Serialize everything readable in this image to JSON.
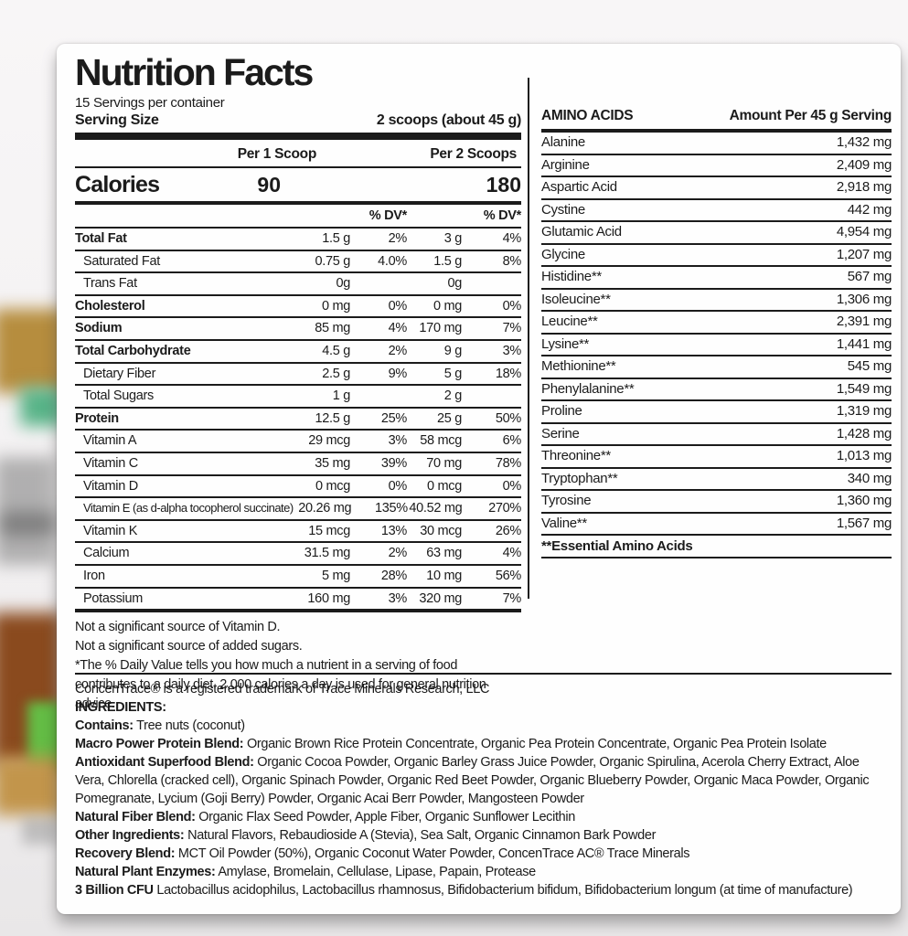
{
  "nutrition": {
    "title": "Nutrition Facts",
    "servings_per_container": "15 Servings per container",
    "serving_size_label": "Serving Size",
    "serving_size_value": "2 scoops (about 45 g)",
    "col1_header": "Per 1 Scoop",
    "col2_header": "Per 2 Scoops",
    "calories_label": "Calories",
    "calories_per_scoop": "90",
    "calories_per_2_scoops": "180",
    "dv_header": "% DV*",
    "rows": [
      {
        "name": "Total Fat",
        "amt1": "1.5 g",
        "dv1": "2%",
        "amt2": "3 g",
        "dv2": "4%",
        "bold": true,
        "indent": false
      },
      {
        "name": "Saturated Fat",
        "amt1": "0.75 g",
        "dv1": "4.0%",
        "amt2": "1.5 g",
        "dv2": "8%",
        "bold": false,
        "indent": true
      },
      {
        "name": "Trans Fat",
        "amt1": "0g",
        "dv1": "",
        "amt2": "0g",
        "dv2": "",
        "bold": false,
        "indent": true
      },
      {
        "name": "Cholesterol",
        "amt1": "0 mg",
        "dv1": "0%",
        "amt2": "0 mg",
        "dv2": "0%",
        "bold": true,
        "indent": false
      },
      {
        "name": "Sodium",
        "amt1": "85 mg",
        "dv1": "4%",
        "amt2": "170 mg",
        "dv2": "7%",
        "bold": true,
        "indent": false
      },
      {
        "name": "Total Carbohydrate",
        "amt1": "4.5 g",
        "dv1": "2%",
        "amt2": "9 g",
        "dv2": "3%",
        "bold": true,
        "indent": false
      },
      {
        "name": "Dietary Fiber",
        "amt1": "2.5 g",
        "dv1": "9%",
        "amt2": "5 g",
        "dv2": "18%",
        "bold": false,
        "indent": true
      },
      {
        "name": "Total Sugars",
        "amt1": "1 g",
        "dv1": "",
        "amt2": "2 g",
        "dv2": "",
        "bold": false,
        "indent": true
      },
      {
        "name": "Protein",
        "amt1": "12.5 g",
        "dv1": "25%",
        "amt2": "25 g",
        "dv2": "50%",
        "bold": true,
        "indent": false
      },
      {
        "name": "Vitamin A",
        "amt1": "29 mcg",
        "dv1": "3%",
        "amt2": "58 mcg",
        "dv2": "6%",
        "bold": false,
        "indent": true
      },
      {
        "name": "Vitamin C",
        "amt1": "35 mg",
        "dv1": "39%",
        "amt2": "70 mg",
        "dv2": "78%",
        "bold": false,
        "indent": true
      },
      {
        "name": "Vitamin D",
        "amt1": "0 mcg",
        "dv1": "0%",
        "amt2": "0 mcg",
        "dv2": "0%",
        "bold": false,
        "indent": true
      },
      {
        "name": "Vitamin E (as d-alpha tocopherol succinate)",
        "amt1": "20.26 mg",
        "dv1": "135%",
        "amt2": "40.52 mg",
        "dv2": "270%",
        "bold": false,
        "indent": true,
        "small": true
      },
      {
        "name": "Vitamin K",
        "amt1": "15 mcg",
        "dv1": "13%",
        "amt2": "30 mcg",
        "dv2": "26%",
        "bold": false,
        "indent": true
      },
      {
        "name": "Calcium",
        "amt1": "31.5 mg",
        "dv1": "2%",
        "amt2": "63 mg",
        "dv2": "4%",
        "bold": false,
        "indent": true
      },
      {
        "name": "Iron",
        "amt1": "5 mg",
        "dv1": "28%",
        "amt2": "10 mg",
        "dv2": "56%",
        "bold": false,
        "indent": true
      },
      {
        "name": "Potassium",
        "amt1": "160 mg",
        "dv1": "3%",
        "amt2": "320 mg",
        "dv2": "7%",
        "bold": false,
        "indent": true,
        "last": true
      }
    ],
    "footnotes": [
      "Not a significant source of Vitamin D.",
      "Not a significant source of added sugars.",
      "*The % Daily Value tells you how much a nutrient in a serving of food contributes to a daily diet. 2,000 calories a day is used for general nutrition advice."
    ]
  },
  "amino_acids": {
    "title": "AMINO ACIDS",
    "amount_header": "Amount Per 45 g Serving",
    "rows": [
      {
        "name": "Alanine",
        "amount": "1,432 mg"
      },
      {
        "name": "Arginine",
        "amount": "2,409 mg"
      },
      {
        "name": "Aspartic Acid",
        "amount": "2,918 mg"
      },
      {
        "name": "Cystine",
        "amount": "442 mg"
      },
      {
        "name": "Glutamic Acid",
        "amount": "4,954 mg"
      },
      {
        "name": "Glycine",
        "amount": "1,207 mg"
      },
      {
        "name": "Histidine**",
        "amount": "567 mg"
      },
      {
        "name": "Isoleucine**",
        "amount": "1,306 mg"
      },
      {
        "name": "Leucine**",
        "amount": "2,391 mg"
      },
      {
        "name": "Lysine**",
        "amount": "1,441 mg"
      },
      {
        "name": "Methionine**",
        "amount": "545 mg"
      },
      {
        "name": "Phenylalanine**",
        "amount": "1,549 mg"
      },
      {
        "name": "Proline",
        "amount": "1,319 mg"
      },
      {
        "name": "Serine",
        "amount": "1,428 mg"
      },
      {
        "name": "Threonine**",
        "amount": "1,013 mg"
      },
      {
        "name": "Tryptophan**",
        "amount": "340 mg"
      },
      {
        "name": "Tyrosine",
        "amount": "1,360 mg"
      },
      {
        "name": "Valine**",
        "amount": "1,567 mg"
      }
    ],
    "footer": "**Essential Amino Acids"
  },
  "ingredients": {
    "lines": [
      {
        "label": "",
        "text": "ConcenTrace® is a registered trademark of Trace Minerals Research, LLC"
      },
      {
        "label": "INGREDIENTS:",
        "text": ""
      },
      {
        "label": "Contains:",
        "text": " Tree nuts (coconut)"
      },
      {
        "label": "Macro Power Protein Blend:",
        "text": " Organic Brown Rice Protein Concentrate, Organic Pea Protein Concentrate, Organic Pea Protein Isolate"
      },
      {
        "label": "Antioxidant Superfood Blend:",
        "text": " Organic Cocoa Powder, Organic Barley Grass Juice Powder, Organic Spirulina, Acerola Cherry Extract, Aloe Vera, Chlorella (cracked cell), Organic Spinach Powder, Organic Red Beet Powder, Organic Blueberry Powder, Organic Maca Powder, Organic Pomegranate,  Lycium (Goji Berry) Powder, Organic Acai Berr Powder, Mangosteen Powder"
      },
      {
        "label": "Natural Fiber Blend:",
        "text": " Organic Flax Seed Powder, Apple Fiber, Organic Sunflower Lecithin"
      },
      {
        "label": "Other Ingredients:",
        "text": " Natural Flavors, Rebaudioside A (Stevia), Sea Salt, Organic Cinnamon Bark Powder"
      },
      {
        "label": "Recovery Blend:",
        "text": " MCT Oil Powder (50%), Organic Coconut Water Powder, ConcenTrace AC® Trace Minerals"
      },
      {
        "label": "Natural Plant Enzymes:",
        "text": " Amylase, Bromelain, Cellulase, Lipase, Papain, Protease"
      },
      {
        "label": "3 Billion CFU",
        "text": " Lactobacillus acidophilus, Lactobacillus rhamnosus, Bifidobacterium bifidum, Bifidobacterium longum (at time of manufacture)"
      }
    ]
  }
}
